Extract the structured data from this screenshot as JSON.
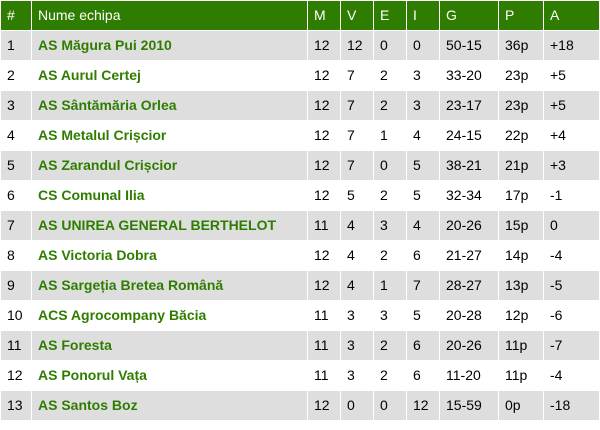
{
  "headers": [
    "#",
    "Nume echipa",
    "M",
    "V",
    "E",
    "I",
    "G",
    "P",
    "A"
  ],
  "rows": [
    [
      "1",
      "AS Măgura Pui 2010",
      "12",
      "12",
      "0",
      "0",
      "50-15",
      "36p",
      "+18"
    ],
    [
      "2",
      "AS Aurul Certej",
      "12",
      "7",
      "2",
      "3",
      "33-20",
      "23p",
      "+5"
    ],
    [
      "3",
      "AS Sântămăria Orlea",
      "12",
      "7",
      "2",
      "3",
      "23-17",
      "23p",
      "+5"
    ],
    [
      "4",
      "AS Metalul Crișcior",
      "12",
      "7",
      "1",
      "4",
      "24-15",
      "22p",
      "+4"
    ],
    [
      "5",
      "AS Zarandul Crișcior",
      "12",
      "7",
      "0",
      "5",
      "38-21",
      "21p",
      "+3"
    ],
    [
      "6",
      "CS Comunal Ilia",
      "12",
      "5",
      "2",
      "5",
      "32-34",
      "17p",
      "-1"
    ],
    [
      "7",
      "AS UNIREA GENERAL BERTHELOT",
      "11",
      "4",
      "3",
      "4",
      "20-26",
      "15p",
      "0"
    ],
    [
      "8",
      "AS Victoria Dobra",
      "12",
      "4",
      "2",
      "6",
      "21-27",
      "14p",
      "-4"
    ],
    [
      "9",
      "AS Sargeția Bretea Română",
      "12",
      "4",
      "1",
      "7",
      "28-27",
      "13p",
      "-5"
    ],
    [
      "10",
      "ACS Agrocompany Băcia",
      "11",
      "3",
      "3",
      "5",
      "20-28",
      "12p",
      "-6"
    ],
    [
      "11",
      "AS Foresta",
      "11",
      "3",
      "2",
      "6",
      "20-26",
      "11p",
      "-7"
    ],
    [
      "12",
      "AS Ponorul Vața",
      "11",
      "3",
      "2",
      "6",
      "11-20",
      "11p",
      "-4"
    ],
    [
      "13",
      "AS Santos Boz",
      "12",
      "0",
      "0",
      "12",
      "15-59",
      "0p",
      "-18"
    ]
  ],
  "colors": {
    "header_bg": "#2f7d00",
    "header_text": "#ffffff",
    "team_text": "#2f7d00",
    "row_alt_bg": "#dedede",
    "row_bg": "#ffffff"
  }
}
